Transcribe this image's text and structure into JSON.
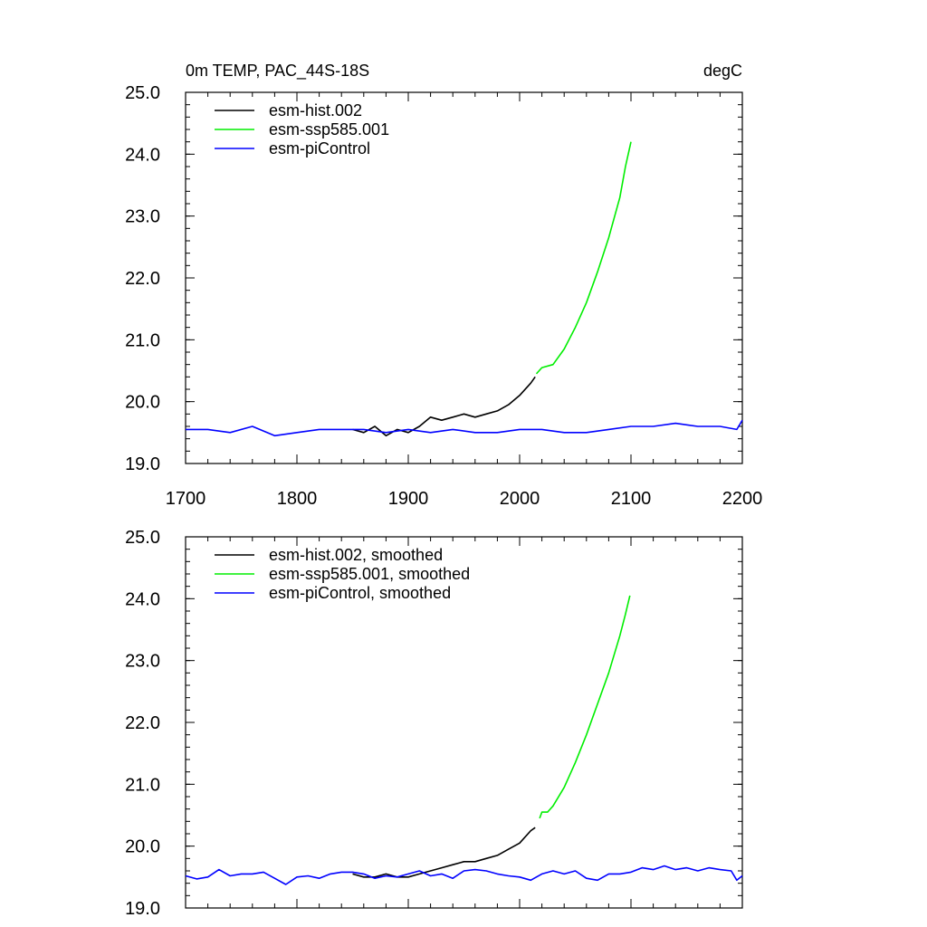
{
  "figure": {
    "title_left": "0m TEMP, PAC_44S-18S",
    "title_right": "degC"
  },
  "colors": {
    "esm_hist": "#000000",
    "esm_ssp585": "#00ee00",
    "esm_piControl": "#0000ff"
  },
  "chart_data": [
    {
      "type": "line",
      "xlim": [
        1700,
        2200
      ],
      "ylim": [
        19.0,
        25.0
      ],
      "xticks": [
        "1700",
        "1800",
        "1900",
        "2000",
        "2100",
        "2200"
      ],
      "yticks": [
        "19.0",
        "20.0",
        "21.0",
        "22.0",
        "23.0",
        "24.0",
        "25.0"
      ],
      "legend_position": "top-left",
      "series": [
        {
          "name": "esm-hist.002",
          "color": "#000000",
          "x": [
            1850,
            1860,
            1870,
            1880,
            1890,
            1900,
            1910,
            1920,
            1930,
            1940,
            1950,
            1960,
            1970,
            1980,
            1990,
            2000,
            2010,
            2014
          ],
          "y": [
            19.55,
            19.5,
            19.6,
            19.45,
            19.55,
            19.5,
            19.6,
            19.75,
            19.7,
            19.75,
            19.8,
            19.75,
            19.8,
            19.85,
            19.95,
            20.1,
            20.3,
            20.4
          ]
        },
        {
          "name": "esm-ssp585.001",
          "color": "#00ee00",
          "x": [
            2015,
            2020,
            2030,
            2040,
            2050,
            2060,
            2070,
            2080,
            2090,
            2095,
            2100
          ],
          "y": [
            20.45,
            20.55,
            20.6,
            20.85,
            21.2,
            21.6,
            22.1,
            22.65,
            23.3,
            23.8,
            24.2
          ]
        },
        {
          "name": "esm-piControl",
          "color": "#0000ff",
          "x": [
            1700,
            1720,
            1740,
            1760,
            1780,
            1800,
            1820,
            1840,
            1860,
            1880,
            1900,
            1920,
            1940,
            1960,
            1980,
            2000,
            2020,
            2040,
            2060,
            2080,
            2100,
            2120,
            2140,
            2160,
            2180,
            2195,
            2200
          ],
          "y": [
            19.55,
            19.55,
            19.5,
            19.6,
            19.45,
            19.5,
            19.55,
            19.55,
            19.55,
            19.5,
            19.55,
            19.5,
            19.55,
            19.5,
            19.5,
            19.55,
            19.55,
            19.5,
            19.5,
            19.55,
            19.6,
            19.6,
            19.65,
            19.6,
            19.6,
            19.55,
            19.7
          ]
        }
      ]
    },
    {
      "type": "line",
      "xlim": [
        1700,
        2200
      ],
      "ylim": [
        19.0,
        25.0
      ],
      "yticks": [
        "19.0",
        "20.0",
        "21.0",
        "22.0",
        "23.0",
        "24.0",
        "25.0"
      ],
      "legend_position": "top-left",
      "series": [
        {
          "name": "esm-hist.002, smoothed",
          "color": "#000000",
          "x": [
            1850,
            1860,
            1870,
            1880,
            1890,
            1900,
            1910,
            1920,
            1930,
            1940,
            1950,
            1960,
            1970,
            1980,
            1990,
            2000,
            2010,
            2014
          ],
          "y": [
            19.55,
            19.5,
            19.5,
            19.55,
            19.5,
            19.5,
            19.55,
            19.6,
            19.65,
            19.7,
            19.75,
            19.75,
            19.8,
            19.85,
            19.95,
            20.05,
            20.25,
            20.3
          ]
        },
        {
          "name": "esm-ssp585.001, smoothed",
          "color": "#00ee00",
          "x": [
            2018,
            2020,
            2025,
            2030,
            2040,
            2050,
            2060,
            2070,
            2080,
            2090,
            2095,
            2099
          ],
          "y": [
            20.45,
            20.55,
            20.55,
            20.65,
            20.95,
            21.35,
            21.8,
            22.3,
            22.8,
            23.4,
            23.75,
            24.05
          ]
        },
        {
          "name": "esm-piControl, smoothed",
          "color": "#0000ff",
          "x": [
            1700,
            1710,
            1720,
            1730,
            1740,
            1750,
            1760,
            1770,
            1780,
            1790,
            1800,
            1810,
            1820,
            1830,
            1840,
            1850,
            1860,
            1870,
            1880,
            1890,
            1900,
            1910,
            1920,
            1930,
            1940,
            1950,
            1960,
            1970,
            1980,
            1990,
            2000,
            2010,
            2020,
            2030,
            2040,
            2050,
            2060,
            2070,
            2080,
            2090,
            2100,
            2110,
            2120,
            2130,
            2140,
            2150,
            2160,
            2170,
            2180,
            2190,
            2195,
            2200
          ],
          "y": [
            19.52,
            19.47,
            19.5,
            19.62,
            19.52,
            19.55,
            19.55,
            19.58,
            19.48,
            19.38,
            19.5,
            19.52,
            19.48,
            19.55,
            19.58,
            19.58,
            19.55,
            19.48,
            19.52,
            19.5,
            19.55,
            19.6,
            19.52,
            19.55,
            19.48,
            19.6,
            19.62,
            19.6,
            19.55,
            19.52,
            19.5,
            19.45,
            19.55,
            19.6,
            19.55,
            19.6,
            19.48,
            19.45,
            19.55,
            19.55,
            19.58,
            19.65,
            19.62,
            19.68,
            19.62,
            19.65,
            19.6,
            19.65,
            19.62,
            19.6,
            19.45,
            19.52
          ]
        }
      ]
    }
  ]
}
